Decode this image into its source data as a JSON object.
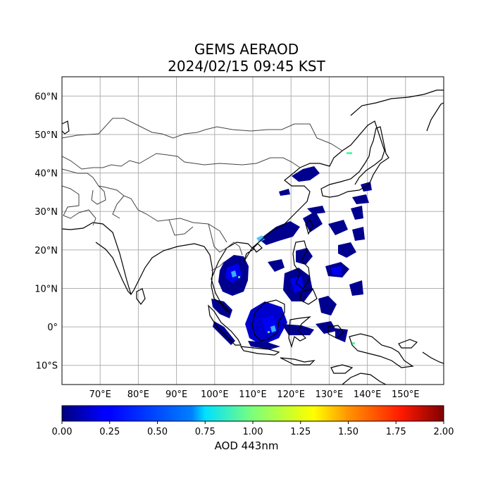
{
  "title": {
    "line1": "GEMS AERAOD",
    "line2": "2024/02/15 09:45 KST"
  },
  "map": {
    "projection": "plate-carree",
    "lon_range": [
      60,
      160
    ],
    "lat_range": [
      -15,
      65
    ],
    "grid": true,
    "lon_ticks": [
      "70°E",
      "80°E",
      "90°E",
      "100°E",
      "110°E",
      "120°E",
      "130°E",
      "140°E",
      "150°E"
    ],
    "lat_ticks": [
      "60°N",
      "50°N",
      "40°N",
      "30°N",
      "20°N",
      "10°N",
      "0°",
      "10°S"
    ],
    "lon_tick_values": [
      70,
      80,
      90,
      100,
      110,
      120,
      130,
      140,
      150
    ],
    "lat_tick_values": [
      60,
      50,
      40,
      30,
      20,
      10,
      0,
      -10
    ]
  },
  "colorbar": {
    "colormap": "jet",
    "min": 0.0,
    "max": 2.0,
    "ticks": [
      "0.00",
      "0.25",
      "0.50",
      "0.75",
      "1.00",
      "1.25",
      "1.50",
      "1.75",
      "2.00"
    ],
    "label": "AOD 443nm"
  },
  "colors": {
    "coastline": "#000000",
    "border": "#444444",
    "grid": "#b0b0b0",
    "aod_low": "#00008f",
    "aod_mid": "#0000ff"
  }
}
